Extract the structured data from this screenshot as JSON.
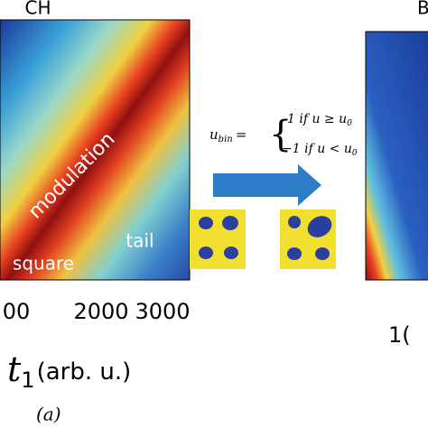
{
  "panels": [
    {
      "title": "CH"
    },
    {
      "title": "B"
    }
  ],
  "annotations": [
    "modulation",
    "tail",
    "square"
  ],
  "xticks": [
    "00",
    "2000",
    "3000"
  ],
  "right_xtick": "1(",
  "xlabel": {
    "symbol": "t",
    "subscript": "1",
    "unit": "(arb. u.)"
  },
  "equation": {
    "lhs": "u",
    "lhs_sub": "bin",
    "equals": "=",
    "case1": "1 if u ≥ u",
    "case1_sub": "0",
    "case2": "−1 if u < u",
    "case2_sub": "0"
  },
  "caption": "(a)"
}
